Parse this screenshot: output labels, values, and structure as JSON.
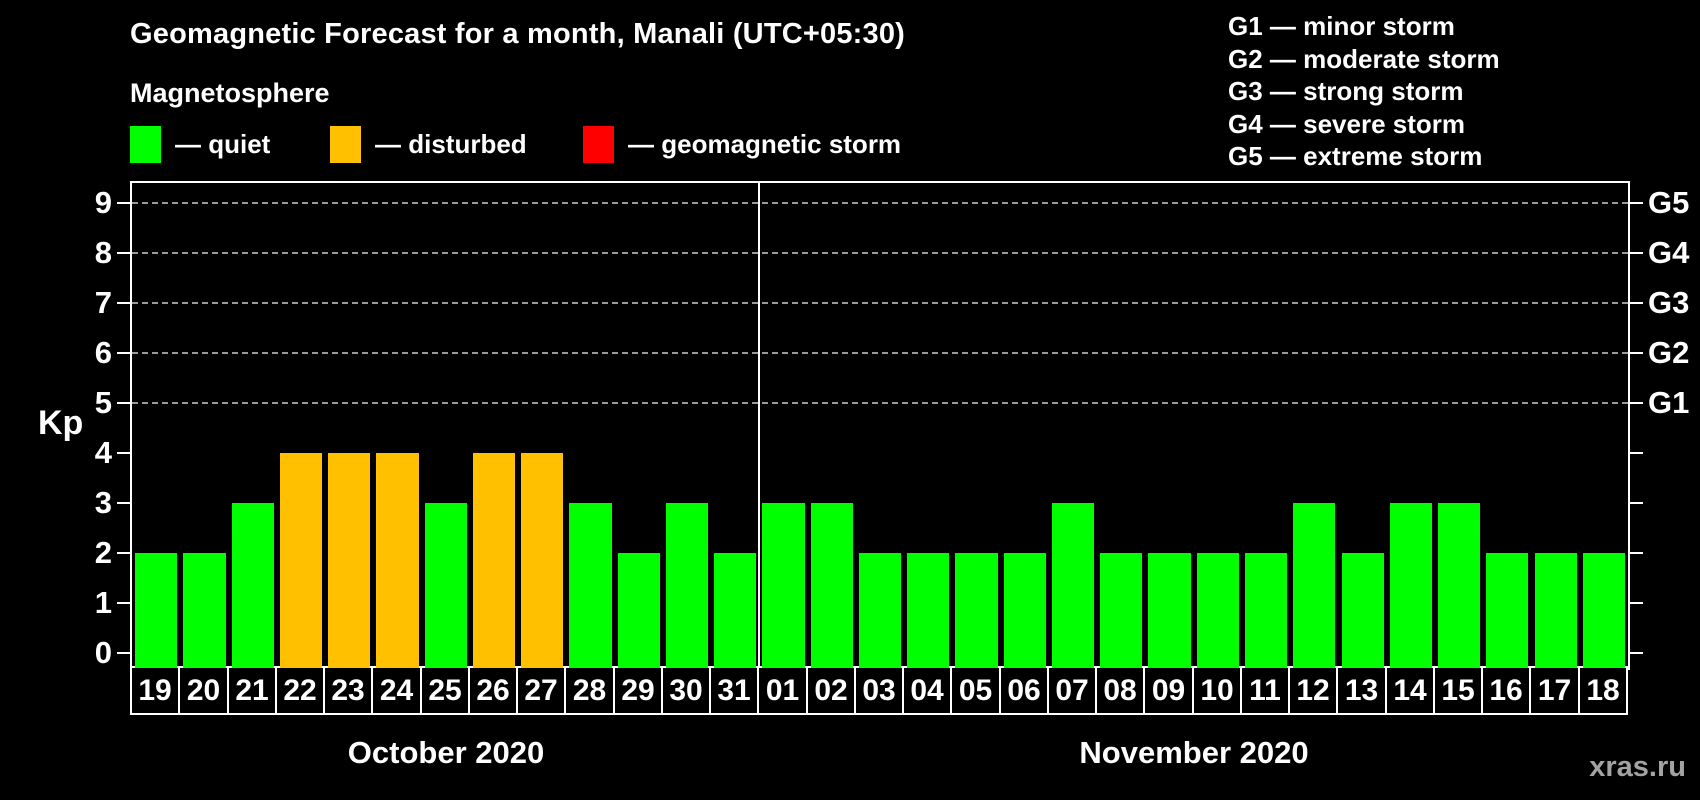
{
  "header": {
    "title": "Geomagnetic Forecast for a month, Manali (UTC+05:30)",
    "subtitle": "Magnetosphere",
    "legend": [
      {
        "key": "quiet",
        "text": "— quiet",
        "color": "#00ff00"
      },
      {
        "key": "disturbed",
        "text": "— disturbed",
        "color": "#ffc000"
      },
      {
        "key": "storm",
        "text": "— geomagnetic storm",
        "color": "#ff0000"
      }
    ]
  },
  "g_legend": [
    "G1 — minor storm",
    "G2 — moderate storm",
    "G3 — strong storm",
    "G4 — severe storm",
    "G5 — extreme storm"
  ],
  "watermark": "xras.ru",
  "chart_data": {
    "type": "bar",
    "title": "Geomagnetic Forecast for a month, Manali (UTC+05:30)",
    "ylabel": "Kp",
    "ylim": [
      -0.31,
      9.4
    ],
    "yticks": [
      0,
      1,
      2,
      3,
      4,
      5,
      6,
      7,
      8,
      9
    ],
    "gridlines": [
      5,
      6,
      7,
      8,
      9
    ],
    "grid_style": "dashed",
    "right_axis": [
      {
        "kp": 5,
        "label": "G1"
      },
      {
        "kp": 6,
        "label": "G2"
      },
      {
        "kp": 7,
        "label": "G3"
      },
      {
        "kp": 8,
        "label": "G4"
      },
      {
        "kp": 9,
        "label": "G5"
      }
    ],
    "colors": {
      "quiet": "#00ff00",
      "disturbed": "#ffc000",
      "storm": "#ff0000"
    },
    "months": [
      {
        "label": "October 2020",
        "days": [
          "19",
          "20",
          "21",
          "22",
          "23",
          "24",
          "25",
          "26",
          "27",
          "28",
          "29",
          "30",
          "31"
        ],
        "kp": [
          2,
          2,
          3,
          4,
          4,
          4,
          3,
          4,
          4,
          3,
          2,
          3,
          2
        ],
        "state": [
          "quiet",
          "quiet",
          "quiet",
          "disturbed",
          "disturbed",
          "disturbed",
          "quiet",
          "disturbed",
          "disturbed",
          "quiet",
          "quiet",
          "quiet",
          "quiet"
        ]
      },
      {
        "label": "November 2020",
        "days": [
          "01",
          "02",
          "03",
          "04",
          "05",
          "06",
          "07",
          "08",
          "09",
          "10",
          "11",
          "12",
          "13",
          "14",
          "15",
          "16",
          "17",
          "18"
        ],
        "kp": [
          3,
          3,
          2,
          2,
          2,
          2,
          3,
          2,
          2,
          2,
          2,
          3,
          2,
          3,
          3,
          2,
          2,
          2
        ],
        "state": [
          "quiet",
          "quiet",
          "quiet",
          "quiet",
          "quiet",
          "quiet",
          "quiet",
          "quiet",
          "quiet",
          "quiet",
          "quiet",
          "quiet",
          "quiet",
          "quiet",
          "quiet",
          "quiet",
          "quiet",
          "quiet"
        ]
      }
    ]
  }
}
